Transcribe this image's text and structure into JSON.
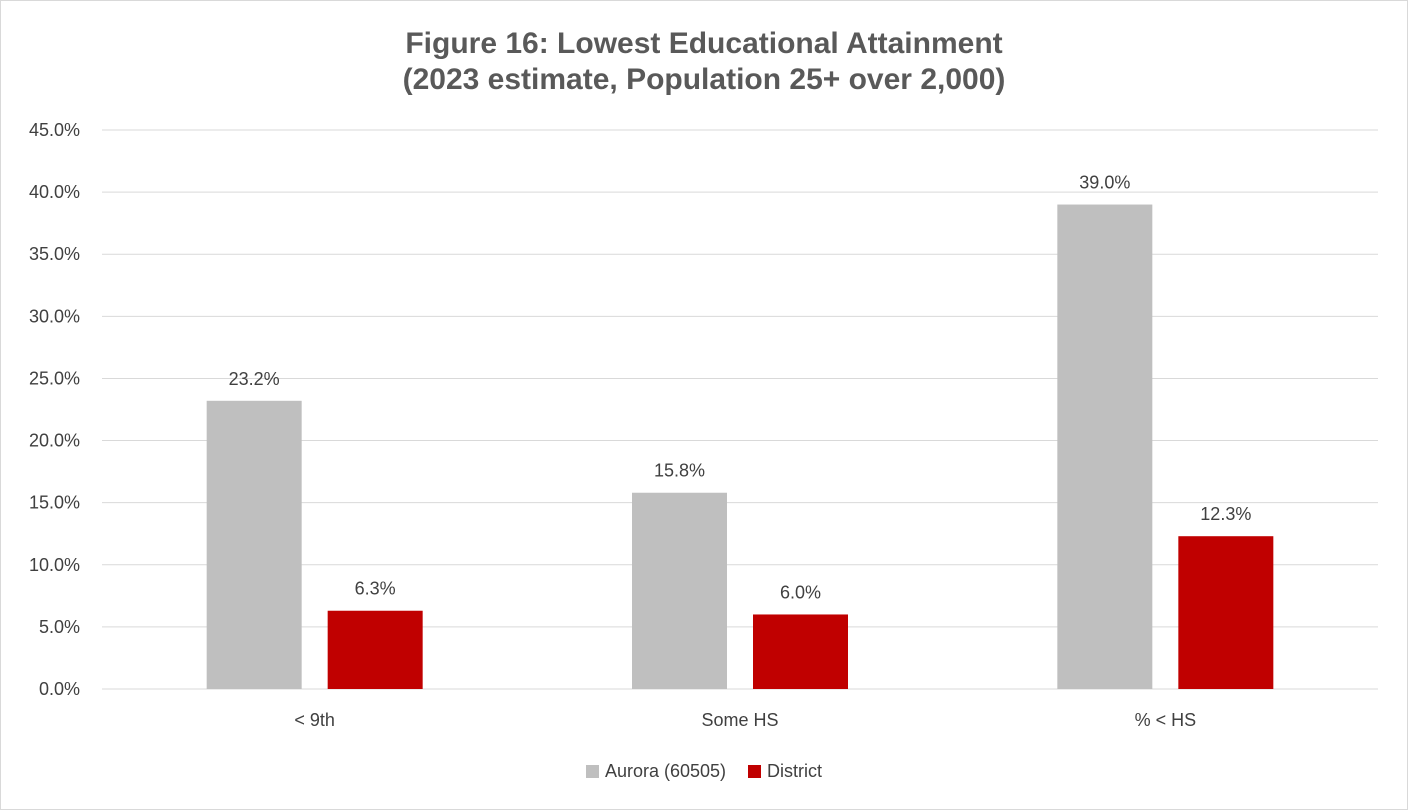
{
  "chart_data": {
    "type": "bar",
    "title": "Figure 16: Lowest Educational Attainment",
    "subtitle": "(2023 estimate, Population 25+ over 2,000)",
    "categories": [
      "< 9th",
      "Some HS",
      "% < HS"
    ],
    "series": [
      {
        "name": "Aurora (60505)",
        "values": [
          23.2,
          15.8,
          39.0
        ],
        "labels": [
          "23.2%",
          "15.8%",
          "39.0%"
        ],
        "color": "#bfbfbf"
      },
      {
        "name": "District",
        "values": [
          6.3,
          6.0,
          12.3
        ],
        "labels": [
          "6.3%",
          "6.0%",
          "12.3%"
        ],
        "color": "#c00000"
      }
    ],
    "ylim": [
      0,
      45
    ],
    "yticks": [
      0,
      5,
      10,
      15,
      20,
      25,
      30,
      35,
      40,
      45
    ],
    "ytick_labels": [
      "0.0%",
      "5.0%",
      "10.0%",
      "15.0%",
      "20.0%",
      "25.0%",
      "30.0%",
      "35.0%",
      "40.0%",
      "45.0%"
    ],
    "xlabel": "",
    "ylabel": "",
    "grid": true,
    "legend_position": "bottom"
  }
}
